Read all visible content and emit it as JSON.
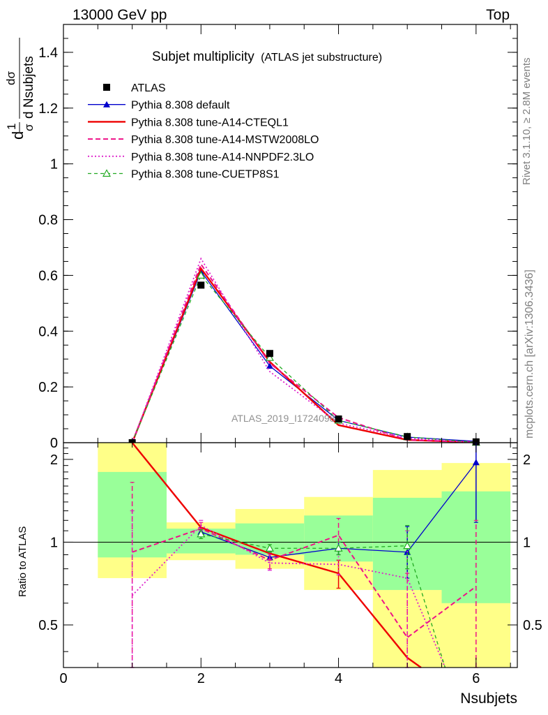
{
  "header": {
    "energy_label": "13000 GeV pp",
    "process_label": "Top"
  },
  "side_text": {
    "rivet": "Rivet 3.1.10, ≥ 2.8M events",
    "mcplots": "mcplots.cern.ch [arXiv:1306.3436]"
  },
  "watermark": "ATLAS_2019_I1724098",
  "chart_data": [
    {
      "type": "line",
      "title": "Subjet multiplicity",
      "subtitle": "(ATLAS jet substructure)",
      "ylabel_main": "dσ",
      "ylabel_main_sub": "d Nsubjets",
      "ylabel_pref_num": "1",
      "ylabel_pref_den": "σ",
      "ylabel_pref_d": "d",
      "xlim": [
        0,
        6.6
      ],
      "ylim": [
        0,
        1.5
      ],
      "y_ticks": [
        0,
        0.2,
        0.4,
        0.6,
        0.8,
        1,
        1.2,
        1.4
      ],
      "y_tick_labels": [
        "0",
        "0.2",
        "0.4",
        "0.6",
        "0.8",
        "1",
        "1.2",
        "1.4"
      ],
      "x": [
        1,
        2,
        3,
        4,
        5,
        6
      ],
      "data": {
        "name": "ATLAS",
        "color": "#000000",
        "values": [
          0.0,
          0.565,
          0.32,
          0.085,
          0.022,
          0.003
        ]
      },
      "series": [
        {
          "name": "Pythia 8.308 default",
          "color": "#0000cc",
          "dash": "",
          "width": 1.3,
          "marker": "triangle-filled",
          "values": [
            0.0,
            0.615,
            0.275,
            0.08,
            0.02,
            0.005
          ]
        },
        {
          "name": "Pythia 8.308 tune-A14-CTEQL1",
          "color": "#ee0000",
          "dash": "",
          "width": 2.4,
          "marker": "",
          "values": [
            0.0,
            0.625,
            0.29,
            0.063,
            0.01,
            0.001
          ]
        },
        {
          "name": "Pythia 8.308 tune-A14-MSTW2008LO",
          "color": "#ee1188",
          "dash": "7,4",
          "width": 2.0,
          "marker": "",
          "values": [
            0.0,
            0.64,
            0.285,
            0.09,
            0.01,
            0.002
          ]
        },
        {
          "name": "Pythia 8.308 tune-A14-NNPDF2.3LO",
          "color": "#dd22cc",
          "dash": "2,3",
          "width": 1.8,
          "marker": "",
          "values": [
            0.0,
            0.66,
            0.255,
            0.07,
            0.016,
            0.001
          ]
        },
        {
          "name": "Pythia 8.308 tune-CUETP8S1",
          "color": "#22aa22",
          "dash": "5,4",
          "width": 1.3,
          "marker": "triangle-open",
          "values": [
            0.0,
            0.6,
            0.305,
            0.08,
            0.021,
            0.001
          ]
        }
      ]
    },
    {
      "type": "line",
      "ylabel": "Ratio to ATLAS",
      "xlabel": "Nsubjets",
      "xlim": [
        0,
        6.6
      ],
      "ylim": [
        0.35,
        2.3
      ],
      "x_ticks": [
        0,
        2,
        4,
        6
      ],
      "x_tick_labels": [
        "0",
        "2",
        "4",
        "6"
      ],
      "y_ticks": [
        0.5,
        1,
        2
      ],
      "y_tick_labels": [
        "0.5",
        "1",
        "2"
      ],
      "uncertainty_bands": [
        {
          "x_range": [
            0.5,
            1.5
          ],
          "outer": [
            0.74,
            2.3
          ],
          "inner": [
            0.88,
            1.8
          ]
        },
        {
          "x_range": [
            1.5,
            2.5
          ],
          "outer": [
            0.86,
            1.18
          ],
          "inner": [
            0.91,
            1.12
          ]
        },
        {
          "x_range": [
            2.5,
            3.5
          ],
          "outer": [
            0.8,
            1.32
          ],
          "inner": [
            0.9,
            1.17
          ]
        },
        {
          "x_range": [
            3.5,
            4.5
          ],
          "outer": [
            0.67,
            1.46
          ],
          "inner": [
            0.85,
            1.25
          ]
        },
        {
          "x_range": [
            4.5,
            5.5
          ],
          "outer": [
            0.35,
            1.83
          ],
          "inner": [
            0.67,
            1.45
          ]
        },
        {
          "x_range": [
            5.5,
            6.5
          ],
          "outer": [
            0.35,
            1.94
          ],
          "inner": [
            0.6,
            1.53
          ]
        }
      ],
      "series": [
        {
          "name": "Pythia 8.308 default",
          "color": "#0000cc",
          "dash": "",
          "width": 1.3,
          "marker": "triangle-filled",
          "x": [
            2,
            3,
            4,
            5,
            6
          ],
          "values": [
            1.09,
            0.88,
            0.95,
            0.92,
            1.95
          ],
          "err_low": [
            1.05,
            0.86,
            0.9,
            0.74,
            1.18
          ],
          "err_high": [
            1.13,
            0.92,
            1.0,
            1.14,
            2.3
          ]
        },
        {
          "name": "Pythia 8.308 tune-A14-CTEQL1",
          "color": "#ee0000",
          "dash": "",
          "width": 2.4,
          "marker": "",
          "x": [
            1,
            2,
            3,
            4,
            5,
            5.2
          ],
          "values": [
            2.3,
            1.13,
            0.91,
            0.77,
            0.38,
            0.35
          ],
          "err_low": [
            null,
            null,
            null,
            0.68,
            null,
            null
          ],
          "err_high": [
            null,
            null,
            null,
            0.86,
            null,
            null
          ]
        },
        {
          "name": "Pythia 8.308 tune-A14-MSTW2008LO",
          "color": "#ee1188",
          "dash": "7,4",
          "width": 2.0,
          "marker": "",
          "x": [
            1,
            2,
            3,
            4,
            5,
            6
          ],
          "values": [
            0.92,
            1.12,
            0.86,
            1.06,
            0.45,
            0.69
          ],
          "err_low": [
            0.35,
            1.07,
            0.8,
            0.93,
            0.35,
            0.35
          ],
          "err_high": [
            1.65,
            1.18,
            0.92,
            1.22,
            0.77,
            1.2
          ]
        },
        {
          "name": "Pythia 8.308 tune-A14-NNPDF2.3LO",
          "color": "#dd22cc",
          "dash": "2,3",
          "width": 1.8,
          "marker": "",
          "x": [
            1,
            2,
            3,
            4,
            5,
            5.55
          ],
          "values": [
            0.64,
            1.15,
            0.84,
            0.83,
            0.74,
            0.35
          ],
          "err_low": [
            0.35,
            1.1,
            0.79,
            0.76,
            0.35,
            null
          ],
          "err_high": [
            1.3,
            1.2,
            0.9,
            0.9,
            1.1,
            null
          ]
        },
        {
          "name": "Pythia 8.308 tune-CUETP8S1",
          "color": "#22aa22",
          "dash": "5,4",
          "width": 1.3,
          "marker": "triangle-open",
          "x": [
            2,
            3,
            4,
            5,
            5.55
          ],
          "values": [
            1.07,
            0.95,
            0.95,
            0.97,
            0.35
          ],
          "err_low": [
            1.03,
            0.92,
            0.9,
            0.8,
            null
          ],
          "err_high": [
            1.11,
            0.98,
            1.0,
            1.15,
            null
          ]
        }
      ]
    }
  ]
}
